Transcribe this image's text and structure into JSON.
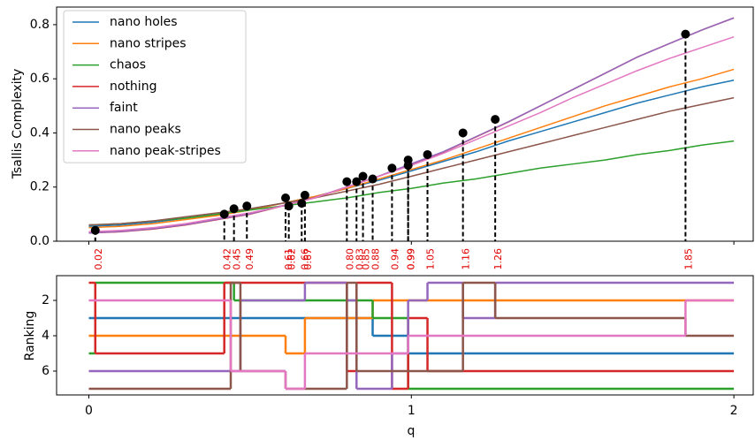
{
  "chart_data": [
    {
      "type": "line",
      "ylabel": "Tsallis Complexity",
      "xlim": [
        -0.1,
        2.06
      ],
      "ylim": [
        0,
        0.865
      ],
      "xticks": [
        0,
        1,
        2
      ],
      "yticks": [
        {
          "value": 0,
          "label": "0.0"
        },
        0.2,
        0.4,
        0.6,
        0.8
      ],
      "legend": "upper left",
      "x": [
        0,
        0.1,
        0.2,
        0.3,
        0.4,
        0.5,
        0.6,
        0.7,
        0.8,
        0.9,
        1.0,
        1.1,
        1.2,
        1.3,
        1.4,
        1.5,
        1.6,
        1.7,
        1.8,
        1.9,
        2.0
      ],
      "series": [
        {
          "name": "nano holes",
          "color": "#1f77b4",
          "values": [
            0.055,
            0.06,
            0.07,
            0.085,
            0.1,
            0.12,
            0.14,
            0.165,
            0.195,
            0.225,
            0.26,
            0.295,
            0.33,
            0.37,
            0.405,
            0.44,
            0.475,
            0.51,
            0.54,
            0.57,
            0.595
          ]
        },
        {
          "name": "nano stripes",
          "color": "#ff7f0e",
          "values": [
            0.05,
            0.055,
            0.065,
            0.08,
            0.095,
            0.115,
            0.14,
            0.165,
            0.195,
            0.23,
            0.265,
            0.3,
            0.34,
            0.38,
            0.42,
            0.46,
            0.5,
            0.535,
            0.57,
            0.6,
            0.635
          ]
        },
        {
          "name": "chaos",
          "color": "#2ca02c",
          "values": [
            0.06,
            0.065,
            0.075,
            0.085,
            0.1,
            0.115,
            0.13,
            0.145,
            0.16,
            0.18,
            0.195,
            0.215,
            0.23,
            0.25,
            0.27,
            0.285,
            0.3,
            0.32,
            0.335,
            0.355,
            0.37
          ]
        },
        {
          "name": "nothing",
          "color": "#d62728",
          "values": [
            0.03,
            0.035,
            0.045,
            0.06,
            0.08,
            0.1,
            0.13,
            0.16,
            0.2,
            0.24,
            0.285,
            0.33,
            0.385,
            0.44,
            0.5,
            0.56,
            0.62,
            0.68,
            0.73,
            0.78,
            0.825
          ]
        },
        {
          "name": "faint",
          "color": "#9467bd",
          "values": [
            0.03,
            0.036,
            0.046,
            0.061,
            0.081,
            0.101,
            0.131,
            0.161,
            0.201,
            0.241,
            0.286,
            0.331,
            0.386,
            0.441,
            0.5,
            0.56,
            0.62,
            0.68,
            0.73,
            0.78,
            0.825
          ]
        },
        {
          "name": "nano peaks",
          "color": "#8c564b",
          "values": [
            0.06,
            0.065,
            0.075,
            0.09,
            0.105,
            0.12,
            0.14,
            0.16,
            0.185,
            0.21,
            0.24,
            0.27,
            0.3,
            0.33,
            0.36,
            0.39,
            0.42,
            0.45,
            0.48,
            0.505,
            0.53
          ]
        },
        {
          "name": "nano peak-stripes",
          "color": "#e377c2",
          "values": [
            0.035,
            0.04,
            0.05,
            0.065,
            0.085,
            0.105,
            0.13,
            0.16,
            0.2,
            0.24,
            0.28,
            0.325,
            0.375,
            0.425,
            0.475,
            0.53,
            0.58,
            0.63,
            0.675,
            0.715,
            0.755
          ]
        }
      ],
      "points": {
        "x": [
          0.02,
          0.42,
          0.45,
          0.49,
          0.61,
          0.62,
          0.66,
          0.67,
          0.8,
          0.83,
          0.85,
          0.88,
          0.94,
          0.99,
          0.99,
          1.05,
          1.16,
          1.26,
          1.85
        ],
        "x_labels": [
          "0.02",
          "0.42",
          "0.45",
          "0.49",
          "0.61",
          "0.62",
          "0.66",
          "0.67",
          "0.80",
          "0.83",
          "0.85",
          "0.88",
          "0.94",
          "0.99",
          "0.99",
          "1.05",
          "1.16",
          "1.26",
          "1.85"
        ],
        "y": [
          0.04,
          0.1,
          0.12,
          0.13,
          0.16,
          0.13,
          0.14,
          0.17,
          0.22,
          0.22,
          0.24,
          0.23,
          0.27,
          0.28,
          0.3,
          0.32,
          0.4,
          0.45,
          0.765
        ]
      }
    },
    {
      "type": "step",
      "xlabel": "q",
      "ylabel": "Ranking",
      "xlim": [
        -0.1,
        2.06
      ],
      "ylim": [
        7.35,
        0.6
      ],
      "xticks": [
        0,
        1,
        2
      ],
      "yticks": [
        2,
        4,
        6
      ],
      "series": [
        {
          "color": "#1f77b4",
          "x": [
            0,
            0.88,
            0.99,
            2
          ],
          "values": [
            3,
            4,
            5,
            5
          ]
        },
        {
          "color": "#ff7f0e",
          "x": [
            0,
            0.61,
            0.67,
            0.88,
            2
          ],
          "values": [
            4,
            5,
            3,
            2,
            2
          ]
        },
        {
          "color": "#2ca02c",
          "x": [
            0,
            0.02,
            0.45,
            0.88,
            0.99,
            2
          ],
          "values": [
            5,
            1,
            2,
            3,
            7,
            7
          ]
        },
        {
          "color": "#d62728",
          "x": [
            0,
            0.02,
            0.42,
            0.8,
            0.83,
            0.94,
            0.99,
            1.05,
            2
          ],
          "values": [
            1,
            5,
            1,
            6,
            1,
            7,
            3,
            6,
            6
          ]
        },
        {
          "color": "#9467bd",
          "x": [
            0,
            0.47,
            0.67,
            0.8,
            0.83,
            0.94,
            0.99,
            1.05,
            1.16,
            1.26,
            2
          ],
          "values": [
            6,
            2,
            1,
            2,
            7,
            5,
            2,
            1,
            3,
            1,
            1
          ]
        },
        {
          "color": "#8c564b",
          "x": [
            0,
            0.44,
            0.47,
            0.61,
            0.8,
            0.83,
            1.16,
            1.26,
            1.85,
            2
          ],
          "values": [
            7,
            1,
            6,
            7,
            1,
            6,
            1,
            3,
            4,
            4
          ]
        },
        {
          "color": "#e377c2",
          "x": [
            0,
            0.44,
            0.61,
            0.67,
            0.99,
            1.85,
            2
          ],
          "values": [
            2,
            6,
            7,
            5,
            4,
            2,
            2
          ]
        }
      ]
    }
  ]
}
